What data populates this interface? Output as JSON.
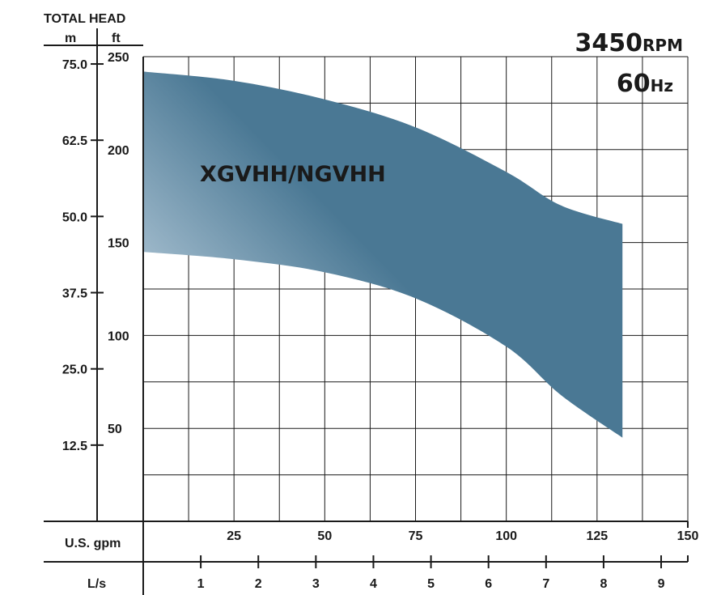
{
  "chart_data": {
    "type": "area",
    "title": "",
    "speed": {
      "value": "3450",
      "unit": "RPM"
    },
    "frequency": {
      "value": "60",
      "unit": "Hz"
    },
    "y_axis": {
      "title": "TOTAL HEAD",
      "left_unit": "m",
      "right_unit": "ft",
      "m_ticks": [
        "75.0",
        "62.5",
        "50.0",
        "37.5",
        "25.0",
        "12.5"
      ],
      "ft_ticks": [
        "250",
        "200",
        "150",
        "100",
        "50"
      ],
      "ft_range": [
        0,
        250
      ]
    },
    "x_axis": {
      "gpm_label": "U.S. gpm",
      "gpm_ticks": [
        "25",
        "50",
        "75",
        "100",
        "125",
        "150"
      ],
      "gpm_range": [
        0,
        150
      ],
      "ls_label": "L/s",
      "ls_ticks": [
        "1",
        "2",
        "3",
        "4",
        "5",
        "6",
        "7",
        "8",
        "9"
      ]
    },
    "grid": true,
    "series": [
      {
        "name": "XGVHH/NGVHH",
        "upper": {
          "x": [
            0,
            25,
            50,
            75,
            100,
            115,
            132
          ],
          "y": [
            242,
            237,
            227,
            212,
            188,
            170,
            160
          ]
        },
        "lower": {
          "x": [
            0,
            25,
            50,
            75,
            100,
            115,
            132
          ],
          "y": [
            145,
            141,
            134,
            120,
            94,
            68,
            45
          ]
        },
        "colors": {
          "dark": "#4a7894",
          "light": "#dde9f3"
        }
      }
    ]
  }
}
